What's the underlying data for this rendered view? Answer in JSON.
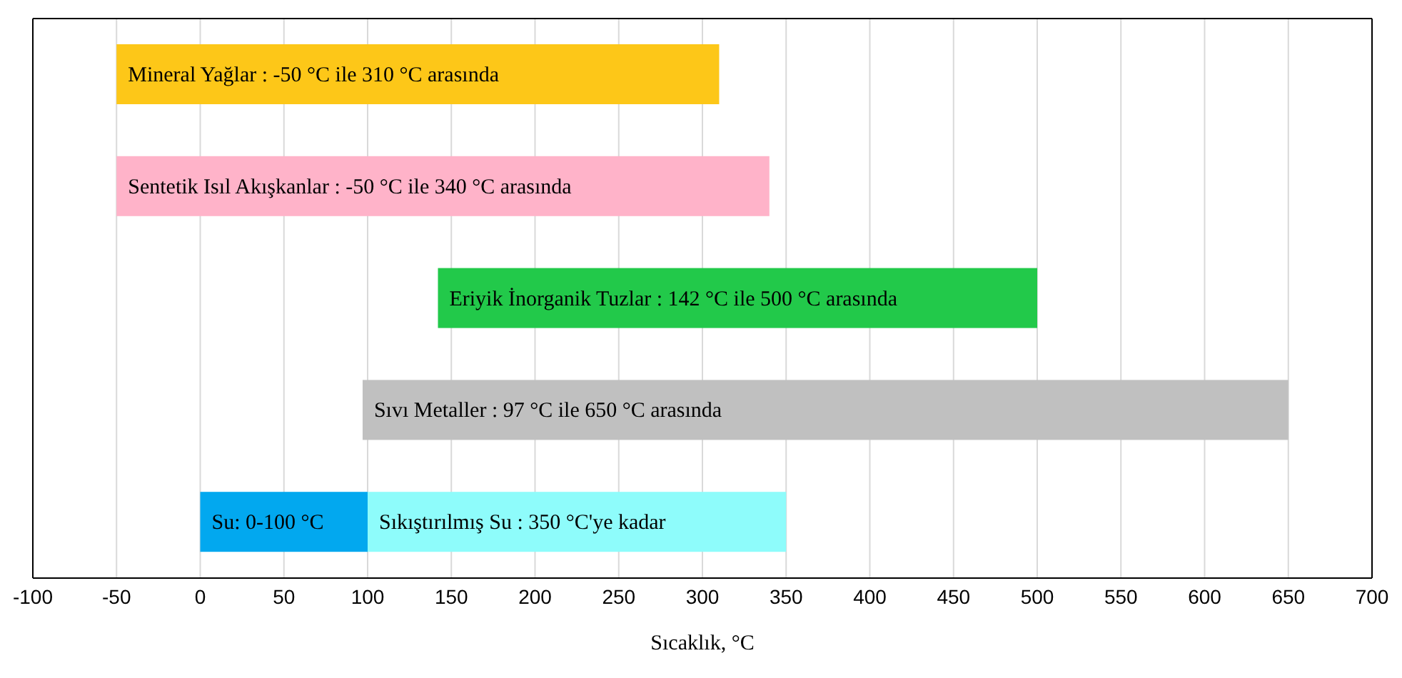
{
  "chart_data": {
    "type": "bar",
    "orientation": "horizontal",
    "xlabel": "Sıcaklık, °C",
    "categories": [
      null,
      null,
      null,
      null,
      null
    ],
    "series": [
      {
        "base": [
          -50,
          -50,
          142,
          97,
          0
        ],
        "values": [
          360,
          390,
          358,
          553,
          100
        ],
        "colors": [
          "#fdc718",
          "#ffb3c9",
          "#22c94a",
          "#c0c0c0",
          "#02a8ef"
        ],
        "value_labels": [
          "Mineral Yağlar : -50 °C ile 310 °C arasında",
          "Sentetik Isıl Akışkanlar : -50 °C ile 340 °C arasında",
          "Eriyik İnorganik Tuzlar : 142 °C ile 500 °C arasında",
          "Sıvı Metaller : 97 °C ile 650 °C arasında",
          "Su: 0-100 °C"
        ]
      },
      {
        "base": [
          null,
          null,
          null,
          null,
          100
        ],
        "values": [
          null,
          null,
          null,
          null,
          250
        ],
        "colors": [
          "#8efcfb",
          "#8efcfb",
          "#8efcfb",
          "#8efcfb",
          "#8efcfb"
        ],
        "value_labels": [
          null,
          null,
          null,
          null,
          "Sıkıştırılmış Su : 350 °C'ye kadar"
        ]
      }
    ],
    "xlim": [
      -100,
      700
    ],
    "xticks": [
      -100,
      -50,
      0,
      50,
      100,
      150,
      200,
      250,
      300,
      350,
      400,
      450,
      500,
      550,
      600,
      650,
      700
    ],
    "grid": "x",
    "tick_labels": "x",
    "legend": false
  }
}
